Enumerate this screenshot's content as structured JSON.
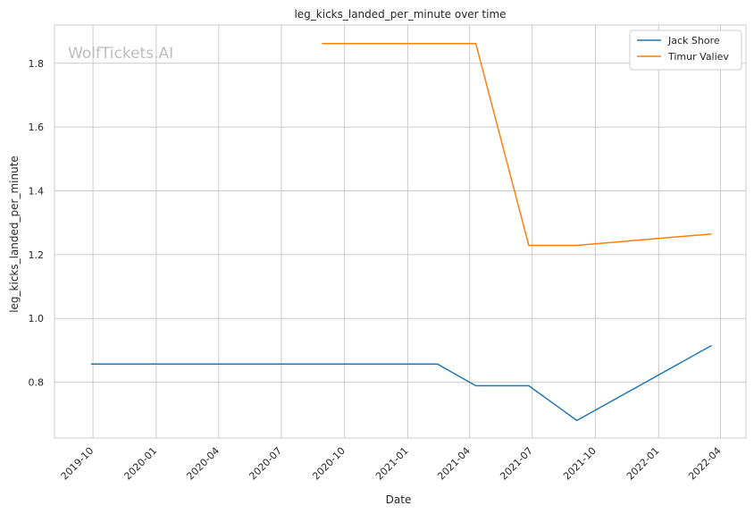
{
  "chart_data": {
    "type": "line",
    "title": "leg_kicks_landed_per_minute over time",
    "xlabel": "Date",
    "ylabel": "leg_kicks_landed_per_minute",
    "watermark": "WolfTickets.AI",
    "x_ticks": [
      "2019-10",
      "2020-01",
      "2020-04",
      "2020-07",
      "2020-10",
      "2021-01",
      "2021-04",
      "2021-07",
      "2021-10",
      "2022-01",
      "2022-04"
    ],
    "y_ticks": [
      "0.8",
      "1.0",
      "1.2",
      "1.4",
      "1.6",
      "1.8"
    ],
    "xlim": [
      "2019-08-06",
      "2022-05-08"
    ],
    "ylim": [
      0.625,
      1.92
    ],
    "grid": true,
    "legend_position": "top-right",
    "series": [
      {
        "name": "Jack Shore",
        "color": "#1f77b4",
        "points": [
          {
            "x": "2019-09-28",
            "y": 0.857
          },
          {
            "x": "2021-02-13",
            "y": 0.857
          },
          {
            "x": "2021-04-10",
            "y": 0.789
          },
          {
            "x": "2021-06-26",
            "y": 0.789
          },
          {
            "x": "2021-09-04",
            "y": 0.68
          },
          {
            "x": "2022-03-19",
            "y": 0.915
          }
        ]
      },
      {
        "name": "Timur Valiev",
        "color": "#ff7f0e",
        "points": [
          {
            "x": "2020-08-29",
            "y": 1.862
          },
          {
            "x": "2021-04-10",
            "y": 1.862
          },
          {
            "x": "2021-06-26",
            "y": 1.229
          },
          {
            "x": "2021-09-04",
            "y": 1.229
          },
          {
            "x": "2022-03-19",
            "y": 1.265
          }
        ]
      }
    ]
  }
}
